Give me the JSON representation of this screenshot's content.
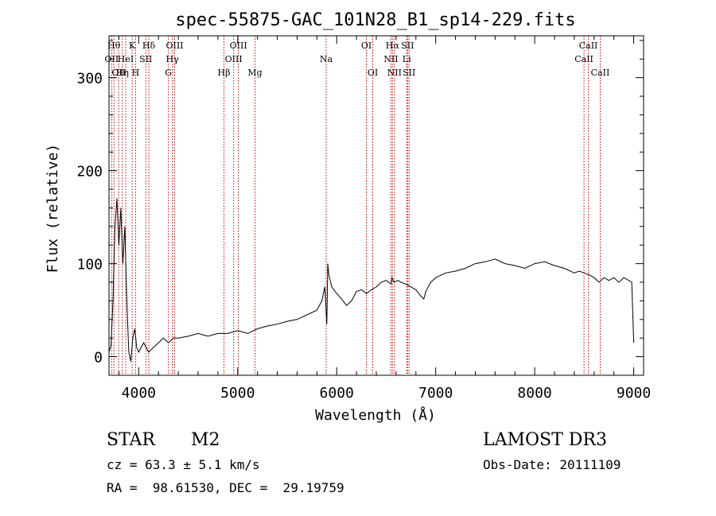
{
  "chart_data": {
    "type": "line",
    "title": "spec-55875-GAC_101N28_B1_sp14-229.fits",
    "xlabel": "Wavelength (Å)",
    "ylabel": "Flux (relative)",
    "xlim": [
      3700,
      9100
    ],
    "ylim": [
      -20,
      345
    ],
    "x_ticks": [
      4000,
      5000,
      6000,
      7000,
      8000,
      9000
    ],
    "y_ticks": [
      0,
      100,
      200,
      300
    ],
    "spectrum": {
      "x": [
        3700,
        3720,
        3740,
        3760,
        3780,
        3800,
        3820,
        3840,
        3860,
        3880,
        3900,
        3920,
        3940,
        3960,
        3980,
        4000,
        4050,
        4100,
        4150,
        4200,
        4250,
        4300,
        4350,
        4400,
        4500,
        4600,
        4700,
        4800,
        4900,
        5000,
        5100,
        5200,
        5300,
        5400,
        5500,
        5600,
        5700,
        5800,
        5850,
        5880,
        5900,
        5910,
        5920,
        5950,
        6000,
        6050,
        6100,
        6150,
        6200,
        6250,
        6300,
        6350,
        6400,
        6450,
        6500,
        6550,
        6560,
        6580,
        6620,
        6650,
        6700,
        6750,
        6800,
        6850,
        6880,
        6900,
        6950,
        7000,
        7100,
        7200,
        7300,
        7400,
        7500,
        7600,
        7700,
        7800,
        7900,
        8000,
        8100,
        8200,
        8300,
        8400,
        8450,
        8500,
        8550,
        8600,
        8650,
        8700,
        8750,
        8800,
        8850,
        8900,
        8950,
        8980,
        9000
      ],
      "y": [
        5,
        12,
        60,
        140,
        170,
        120,
        160,
        100,
        140,
        60,
        5,
        -5,
        20,
        30,
        10,
        5,
        15,
        5,
        10,
        15,
        20,
        15,
        20,
        20,
        22,
        25,
        22,
        25,
        25,
        28,
        25,
        30,
        33,
        35,
        38,
        40,
        45,
        50,
        60,
        75,
        35,
        100,
        88,
        75,
        68,
        62,
        55,
        60,
        70,
        72,
        68,
        72,
        75,
        80,
        82,
        78,
        85,
        80,
        82,
        80,
        78,
        75,
        72,
        65,
        62,
        70,
        80,
        85,
        90,
        92,
        95,
        100,
        102,
        105,
        100,
        98,
        95,
        100,
        102,
        98,
        95,
        90,
        92,
        90,
        88,
        85,
        80,
        85,
        82,
        85,
        80,
        85,
        82,
        80,
        15
      ]
    },
    "lines": [
      {
        "wl": 3727,
        "label": "OII",
        "row": 2
      },
      {
        "wl": 3750,
        "label": "Hθ",
        "row": 1
      },
      {
        "wl": 3798,
        "label": "OII",
        "row": 3
      },
      {
        "wl": 3835,
        "label": "Hη",
        "row": 3
      },
      {
        "wl": 3869,
        "label": "HeI",
        "row": 2
      },
      {
        "wl": 3934,
        "label": "K",
        "row": 1
      },
      {
        "wl": 3969,
        "label": "H",
        "row": 3
      },
      {
        "wl": 4072,
        "label": "SII",
        "row": 2
      },
      {
        "wl": 4102,
        "label": "Hδ",
        "row": 1
      },
      {
        "wl": 4300,
        "label": "G",
        "row": 3
      },
      {
        "wl": 4340,
        "label": "Hγ",
        "row": 2
      },
      {
        "wl": 4363,
        "label": "OIII",
        "row": 1
      },
      {
        "wl": 4861,
        "label": "Hβ",
        "row": 3
      },
      {
        "wl": 4959,
        "label": "OIII",
        "row": 2
      },
      {
        "wl": 5007,
        "label": "OIII",
        "row": 1
      },
      {
        "wl": 5175,
        "label": "Mg",
        "row": 3
      },
      {
        "wl": 5893,
        "label": "Na",
        "row": 2
      },
      {
        "wl": 6300,
        "label": "OI",
        "row": 1
      },
      {
        "wl": 6364,
        "label": "OI",
        "row": 3
      },
      {
        "wl": 6548,
        "label": "NII",
        "row": 2
      },
      {
        "wl": 6563,
        "label": "Hα",
        "row": 1
      },
      {
        "wl": 6583,
        "label": "NII",
        "row": 3
      },
      {
        "wl": 6707,
        "label": "Li",
        "row": 2
      },
      {
        "wl": 6716,
        "label": "SII",
        "row": 1
      },
      {
        "wl": 6731,
        "label": "SII",
        "row": 3
      },
      {
        "wl": 8498,
        "label": "CaII",
        "row": 2
      },
      {
        "wl": 8542,
        "label": "CaII",
        "row": 1
      },
      {
        "wl": 8662,
        "label": "CaII",
        "row": 3
      }
    ]
  },
  "info": {
    "object_class": "STAR",
    "subclass": "M2",
    "survey": "LAMOST DR3",
    "redshift": "cz = 63.3 ± 5.1 km/s",
    "obs_date": "Obs-Date: 20111109",
    "coords": "RA =  98.61530, DEC =  29.19759"
  },
  "colors": {
    "line_marker": "#cc0000",
    "spectrum": "#000000"
  }
}
